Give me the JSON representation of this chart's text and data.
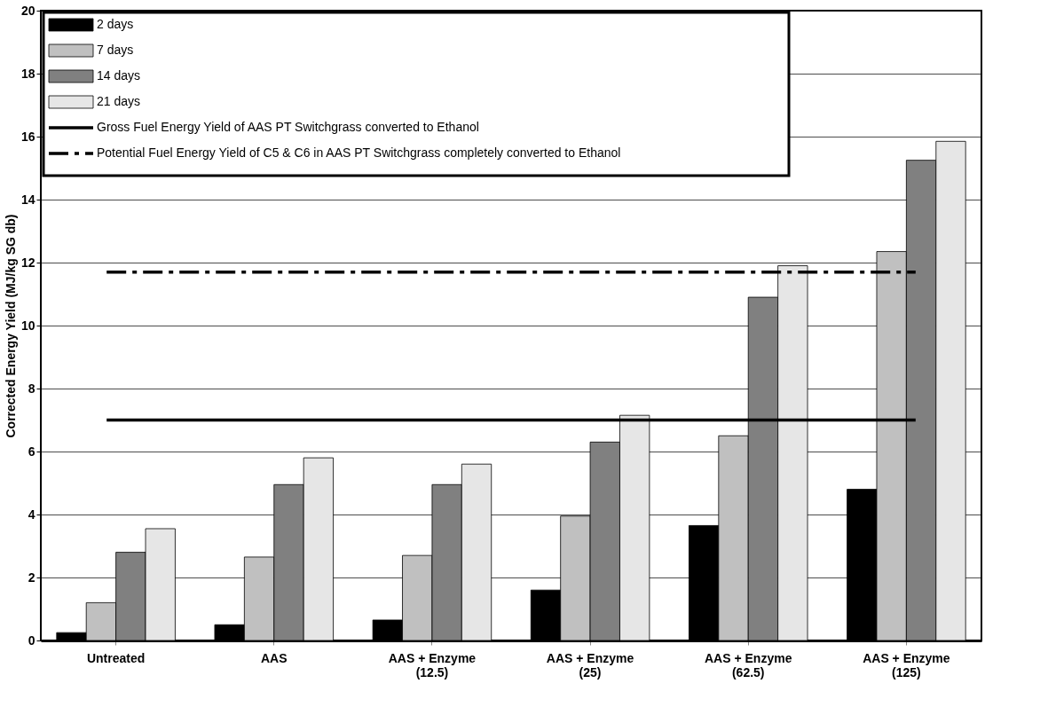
{
  "chart_data": {
    "type": "bar",
    "ylabel": "Corrected Energy Yield (MJ/kg SG db)",
    "categories": [
      "Untreated",
      "AAS",
      "AAS + Enzyme (12.5)",
      "AAS + Enzyme (25)",
      "AAS + Enzyme (62.5)",
      "AAS + Enzyme (125)"
    ],
    "series": [
      {
        "name": "2 days",
        "color": "#000000",
        "values": [
          0.25,
          0.5,
          0.65,
          1.6,
          3.65,
          4.8
        ]
      },
      {
        "name": "7 days",
        "color": "#c0c0c0",
        "values": [
          1.2,
          2.65,
          2.7,
          3.95,
          6.5,
          12.35
        ]
      },
      {
        "name": "14 days",
        "color": "#808080",
        "values": [
          2.8,
          4.95,
          4.95,
          6.3,
          10.9,
          15.25
        ]
      },
      {
        "name": "21 days",
        "color": "#e6e6e6",
        "values": [
          3.55,
          5.8,
          5.6,
          7.15,
          11.9,
          15.85
        ]
      }
    ],
    "ref_lines": [
      {
        "axis": "y",
        "value": 7.0,
        "label": "Gross Fuel Energy Yield of AAS PT Switchgrass converted to Ethanol",
        "color": "#000000",
        "line_style": "solid"
      },
      {
        "axis": "y",
        "value": 11.7,
        "label": "Potential Fuel Energy Yield of C5 & C6 in AAS PT Switchgrass completely converted to Ethanol",
        "color": "#000000",
        "line_style": "dashed"
      }
    ],
    "ylim": [
      0,
      20
    ],
    "yticks": [
      0,
      2,
      4,
      6,
      8,
      10,
      12,
      14,
      16,
      18,
      20
    ],
    "grid": "y",
    "legend": "top left"
  }
}
